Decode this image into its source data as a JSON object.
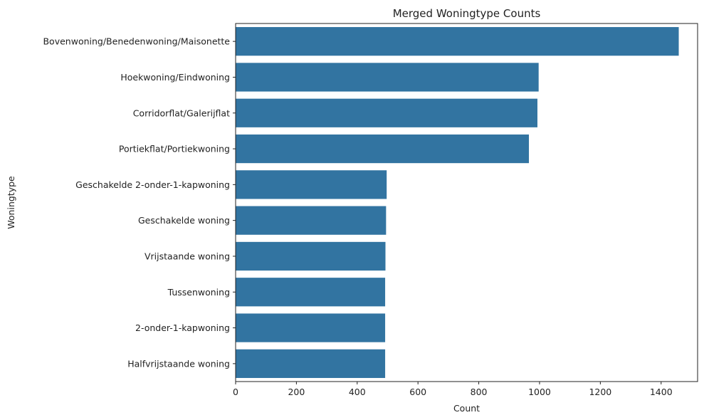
{
  "chart_data": {
    "type": "bar",
    "orientation": "horizontal",
    "title": "Merged Woningtype Counts",
    "xlabel": "Count",
    "ylabel": "Woningtype",
    "categories": [
      "Bovenwoning/Benedenwoning/Maisonette",
      "Hoekwoning/Eindwoning",
      "Corridorflat/Galerijflat",
      "Portiekflat/Portiekwoning",
      "Geschakelde 2-onder-1-kapwoning",
      "Geschakelde woning",
      "Vrijstaande woning",
      "Tussenwoning",
      "2-onder-1-kapwoning",
      "Halfvrijstaande woning"
    ],
    "values": [
      1458,
      997,
      993,
      965,
      497,
      495,
      493,
      492,
      492,
      492
    ],
    "xlim": [
      0,
      1520
    ],
    "xticks": [
      0,
      200,
      400,
      600,
      800,
      1000,
      1200,
      1400
    ],
    "xtick_labels": [
      "0",
      "200",
      "400",
      "600",
      "800",
      "1000",
      "1200",
      "1400"
    ],
    "grid": false,
    "bar_color": "#3274a1"
  }
}
